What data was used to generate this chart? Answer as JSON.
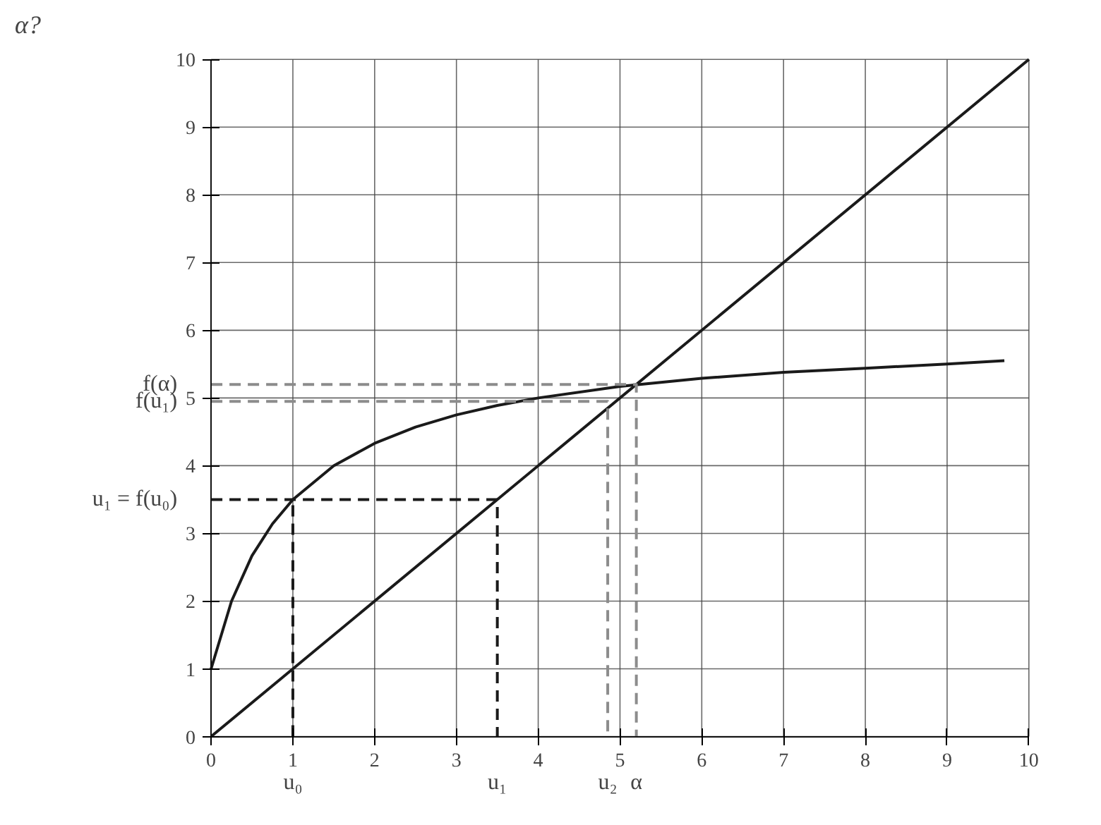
{
  "chart_data": {
    "type": "line",
    "title": "α?",
    "xlim": [
      0,
      10
    ],
    "ylim": [
      0,
      10
    ],
    "xticks": [
      0,
      1,
      2,
      3,
      4,
      5,
      6,
      7,
      8,
      9,
      10
    ],
    "yticks": [
      0,
      1,
      2,
      3,
      4,
      5,
      6,
      7,
      8,
      9,
      10
    ],
    "grid": true,
    "line_style": "solid",
    "series": [
      {
        "color": "#1a1a1a",
        "x": [
          0,
          0.25,
          0.5,
          0.75,
          1,
          1.5,
          2,
          2.5,
          3,
          3.5,
          4,
          5,
          6,
          7,
          8,
          9,
          9.7
        ],
        "values": [
          1,
          2,
          2.67,
          3.14,
          3.5,
          4,
          4.33,
          4.57,
          4.75,
          4.89,
          5,
          5.17,
          5.29,
          5.38,
          5.44,
          5.5,
          5.55
        ]
      },
      {
        "color": "#1a1a1a",
        "x": [
          0,
          10
        ],
        "values": [
          0,
          10
        ]
      },
      {
        "color": "#1a1a1a",
        "line_style": "dashed",
        "x": [
          1,
          1
        ],
        "values": [
          0,
          3.5
        ]
      },
      {
        "color": "#1a1a1a",
        "line_style": "dashed",
        "x": [
          0,
          3.5,
          3.5
        ],
        "values": [
          3.5,
          3.5,
          0
        ]
      },
      {
        "color": "#8c8c8c",
        "line_style": "dashed",
        "x": [
          0,
          5.2,
          5.2
        ],
        "values": [
          5.2,
          5.2,
          0
        ]
      },
      {
        "color": "#8c8c8c",
        "line_style": "dashed",
        "x": [
          0,
          4.85,
          4.85
        ],
        "values": [
          4.95,
          4.95,
          0
        ]
      }
    ],
    "annotations": [
      {
        "text": "u₁ = f(u₀)",
        "x": 0,
        "y": 3.5
      },
      {
        "text": "f(α)",
        "x": 0,
        "y": 5.2
      },
      {
        "text": "f(u₁)",
        "x": 0,
        "y": 4.95
      },
      {
        "text": "u₀",
        "x": 1,
        "y": 0
      },
      {
        "text": "u₁",
        "x": 3.5,
        "y": 0
      },
      {
        "text": "u₂",
        "x": 4.85,
        "y": 0
      },
      {
        "text": "α",
        "x": 5.2,
        "y": 0
      }
    ]
  }
}
